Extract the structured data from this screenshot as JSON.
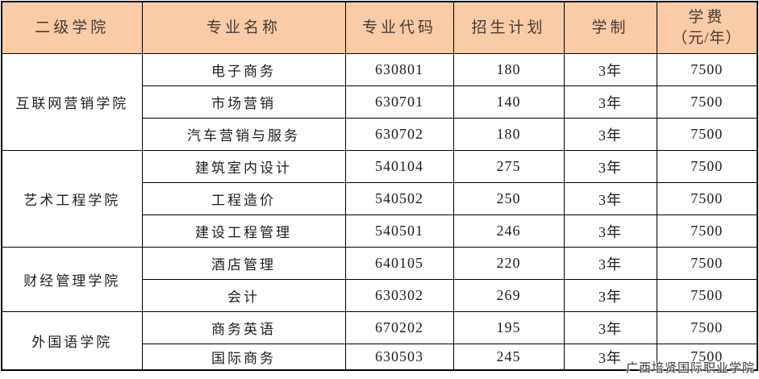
{
  "colors": {
    "header_bg": "#f9cba6",
    "header_text": "#4a3b31",
    "body_text": "#1d1d1d",
    "border": "#000000",
    "watermark_text": "#3a3a3a"
  },
  "header": {
    "college": "二级学院",
    "major": "专业名称",
    "code": "专业代码",
    "plan": "招生计划",
    "duration": "学制",
    "tuition_line1": "学费",
    "tuition_line2": "（元/年）"
  },
  "groups": [
    {
      "college": "互联网营销学院",
      "rows": [
        {
          "major": "电子商务",
          "code": "630801",
          "plan": "180",
          "duration": "3年",
          "tuition": "7500"
        },
        {
          "major": "市场营销",
          "code": "630701",
          "plan": "140",
          "duration": "3年",
          "tuition": "7500"
        },
        {
          "major": "汽车营销与服务",
          "code": "630702",
          "plan": "180",
          "duration": "3年",
          "tuition": "7500"
        }
      ]
    },
    {
      "college": "艺术工程学院",
      "rows": [
        {
          "major": "建筑室内设计",
          "code": "540104",
          "plan": "275",
          "duration": "3年",
          "tuition": "7500"
        },
        {
          "major": "工程造价",
          "code": "540502",
          "plan": "250",
          "duration": "3年",
          "tuition": "7500"
        },
        {
          "major": "建设工程管理",
          "code": "540501",
          "plan": "246",
          "duration": "3年",
          "tuition": "7500"
        }
      ]
    },
    {
      "college": "财经管理学院",
      "rows": [
        {
          "major": "酒店管理",
          "code": "640105",
          "plan": "220",
          "duration": "3年",
          "tuition": "7500"
        },
        {
          "major": "会计",
          "code": "630302",
          "plan": "269",
          "duration": "3年",
          "tuition": "7500"
        }
      ]
    },
    {
      "college": "外国语学院",
      "rows": [
        {
          "major": "商务英语",
          "code": "670202",
          "plan": "195",
          "duration": "3年",
          "tuition": "7500"
        },
        {
          "major": "国际商务",
          "code": "630503",
          "plan": "245",
          "duration": "3年",
          "tuition": "7500"
        }
      ]
    }
  ],
  "watermark": "广西培贤国际职业学院"
}
